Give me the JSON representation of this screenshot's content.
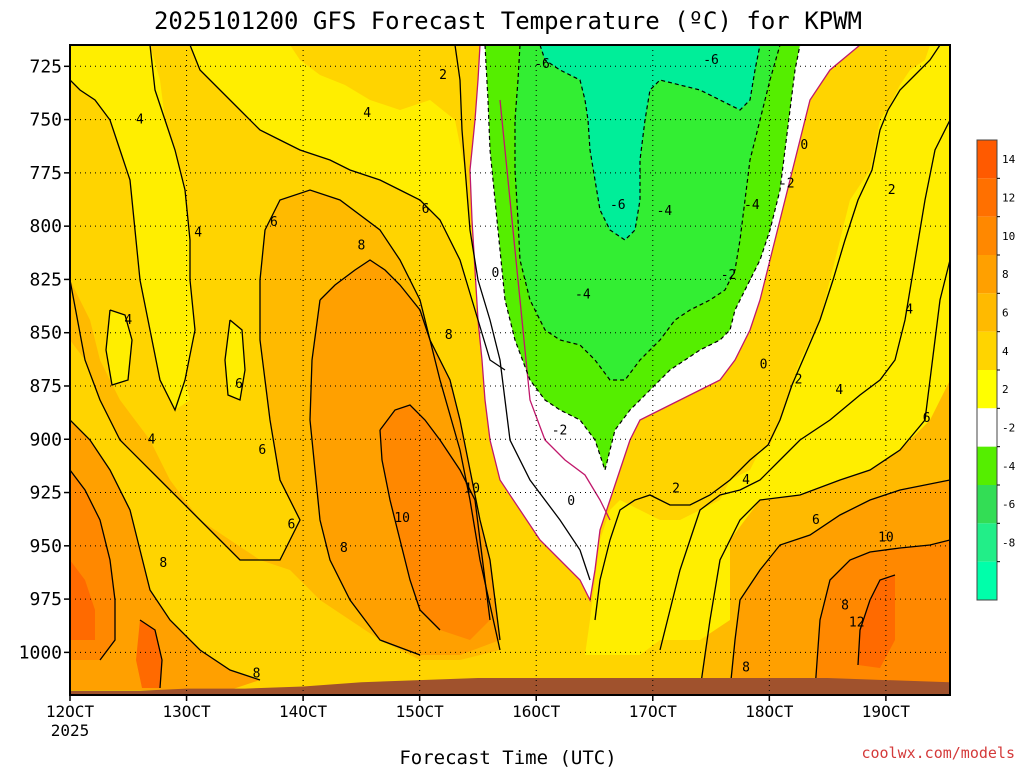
{
  "chart_data": {
    "type": "heatmap",
    "title": "2025101200 GFS Forecast Temperature (ºC) for KPWM",
    "xlabel": "Forecast Time (UTC)",
    "credit": "coolwx.com/models",
    "x_ticks": [
      "12OCT",
      "13OCT",
      "14OCT",
      "15OCT",
      "16OCT",
      "17OCT",
      "18OCT",
      "19OCT"
    ],
    "x_year": "2025",
    "y_ticks": [
      "725",
      "750",
      "775",
      "800",
      "825",
      "850",
      "875",
      "900",
      "925",
      "950",
      "975",
      "1000"
    ],
    "y_range": [
      1020,
      715
    ],
    "x_range": [
      12.0,
      19.55
    ],
    "grid": true,
    "colorbar": {
      "labels": [
        "14",
        "12",
        "10",
        "8",
        "6",
        "4",
        "2",
        "-2",
        "-4",
        "-6",
        "-8"
      ],
      "colors": [
        "#ff5a00",
        "#ff7000",
        "#ff8800",
        "#ffa000",
        "#ffba00",
        "#ffd400",
        "#ffff00",
        "#ffffff",
        "#55ee00",
        "#33dd55",
        "#22ee88",
        "#00ffaa"
      ]
    },
    "levels": [
      -8,
      -6,
      -4,
      -2,
      0,
      2,
      4,
      6,
      8,
      10,
      12,
      14
    ],
    "colors": {
      "cold_m6": "#00ee99",
      "cold_m4": "#33ee33",
      "cold_m2": "#55ee00",
      "zero_band": "#ffffff",
      "warm_0": "#ffff00",
      "warm_2": "#ffee00",
      "warm_4": "#ffd400",
      "warm_6": "#ffba00",
      "warm_8": "#ffa000",
      "warm_10": "#ff8800",
      "warm_12": "#ff6a00",
      "terrain": "#a0522d",
      "freezing_line": "#c0186b"
    },
    "contour_labels": [
      {
        "text": "2",
        "x": 15.2,
        "y": 729
      },
      {
        "text": "4",
        "x": 12.6,
        "y": 750
      },
      {
        "text": "4",
        "x": 14.55,
        "y": 747
      },
      {
        "text": "6",
        "x": 15.05,
        "y": 792
      },
      {
        "text": "6",
        "x": 13.75,
        "y": 798
      },
      {
        "text": "4",
        "x": 13.1,
        "y": 803
      },
      {
        "text": "8",
        "x": 14.5,
        "y": 809
      },
      {
        "text": "4",
        "x": 12.5,
        "y": 844
      },
      {
        "text": "8",
        "x": 15.25,
        "y": 851
      },
      {
        "text": "6",
        "x": 13.45,
        "y": 874
      },
      {
        "text": "4",
        "x": 12.7,
        "y": 900
      },
      {
        "text": "6",
        "x": 13.65,
        "y": 905
      },
      {
        "text": "10",
        "x": 15.45,
        "y": 923
      },
      {
        "text": "10",
        "x": 14.85,
        "y": 937
      },
      {
        "text": "6",
        "x": 13.9,
        "y": 940
      },
      {
        "text": "8",
        "x": 14.35,
        "y": 951
      },
      {
        "text": "8",
        "x": 12.8,
        "y": 958
      },
      {
        "text": "8",
        "x": 13.6,
        "y": 1010
      },
      {
        "text": "0",
        "x": 15.65,
        "y": 822
      },
      {
        "text": "-2",
        "x": 16.2,
        "y": 896
      },
      {
        "text": "0",
        "x": 16.3,
        "y": 929
      },
      {
        "text": "-6",
        "x": 16.05,
        "y": 724
      },
      {
        "text": "-6",
        "x": 17.5,
        "y": 722
      },
      {
        "text": "-6",
        "x": 16.7,
        "y": 790
      },
      {
        "text": "-4",
        "x": 17.1,
        "y": 793
      },
      {
        "text": "-4",
        "x": 17.85,
        "y": 790
      },
      {
        "text": "-4",
        "x": 16.4,
        "y": 832
      },
      {
        "text": "-2",
        "x": 17.65,
        "y": 823
      },
      {
        "text": "-2",
        "x": 18.15,
        "y": 780
      },
      {
        "text": "0",
        "x": 18.3,
        "y": 762
      },
      {
        "text": "0",
        "x": 17.95,
        "y": 865
      },
      {
        "text": "2",
        "x": 19.05,
        "y": 783
      },
      {
        "text": "2",
        "x": 18.25,
        "y": 872
      },
      {
        "text": "2",
        "x": 17.2,
        "y": 923
      },
      {
        "text": "4",
        "x": 19.2,
        "y": 839
      },
      {
        "text": "4",
        "x": 18.6,
        "y": 877
      },
      {
        "text": "4",
        "x": 17.8,
        "y": 919
      },
      {
        "text": "6",
        "x": 19.35,
        "y": 890
      },
      {
        "text": "6",
        "x": 18.4,
        "y": 938
      },
      {
        "text": "10",
        "x": 19.0,
        "y": 946
      },
      {
        "text": "8",
        "x": 18.65,
        "y": 978
      },
      {
        "text": "12",
        "x": 18.75,
        "y": 986
      },
      {
        "text": "8",
        "x": 17.8,
        "y": 1007
      }
    ]
  }
}
